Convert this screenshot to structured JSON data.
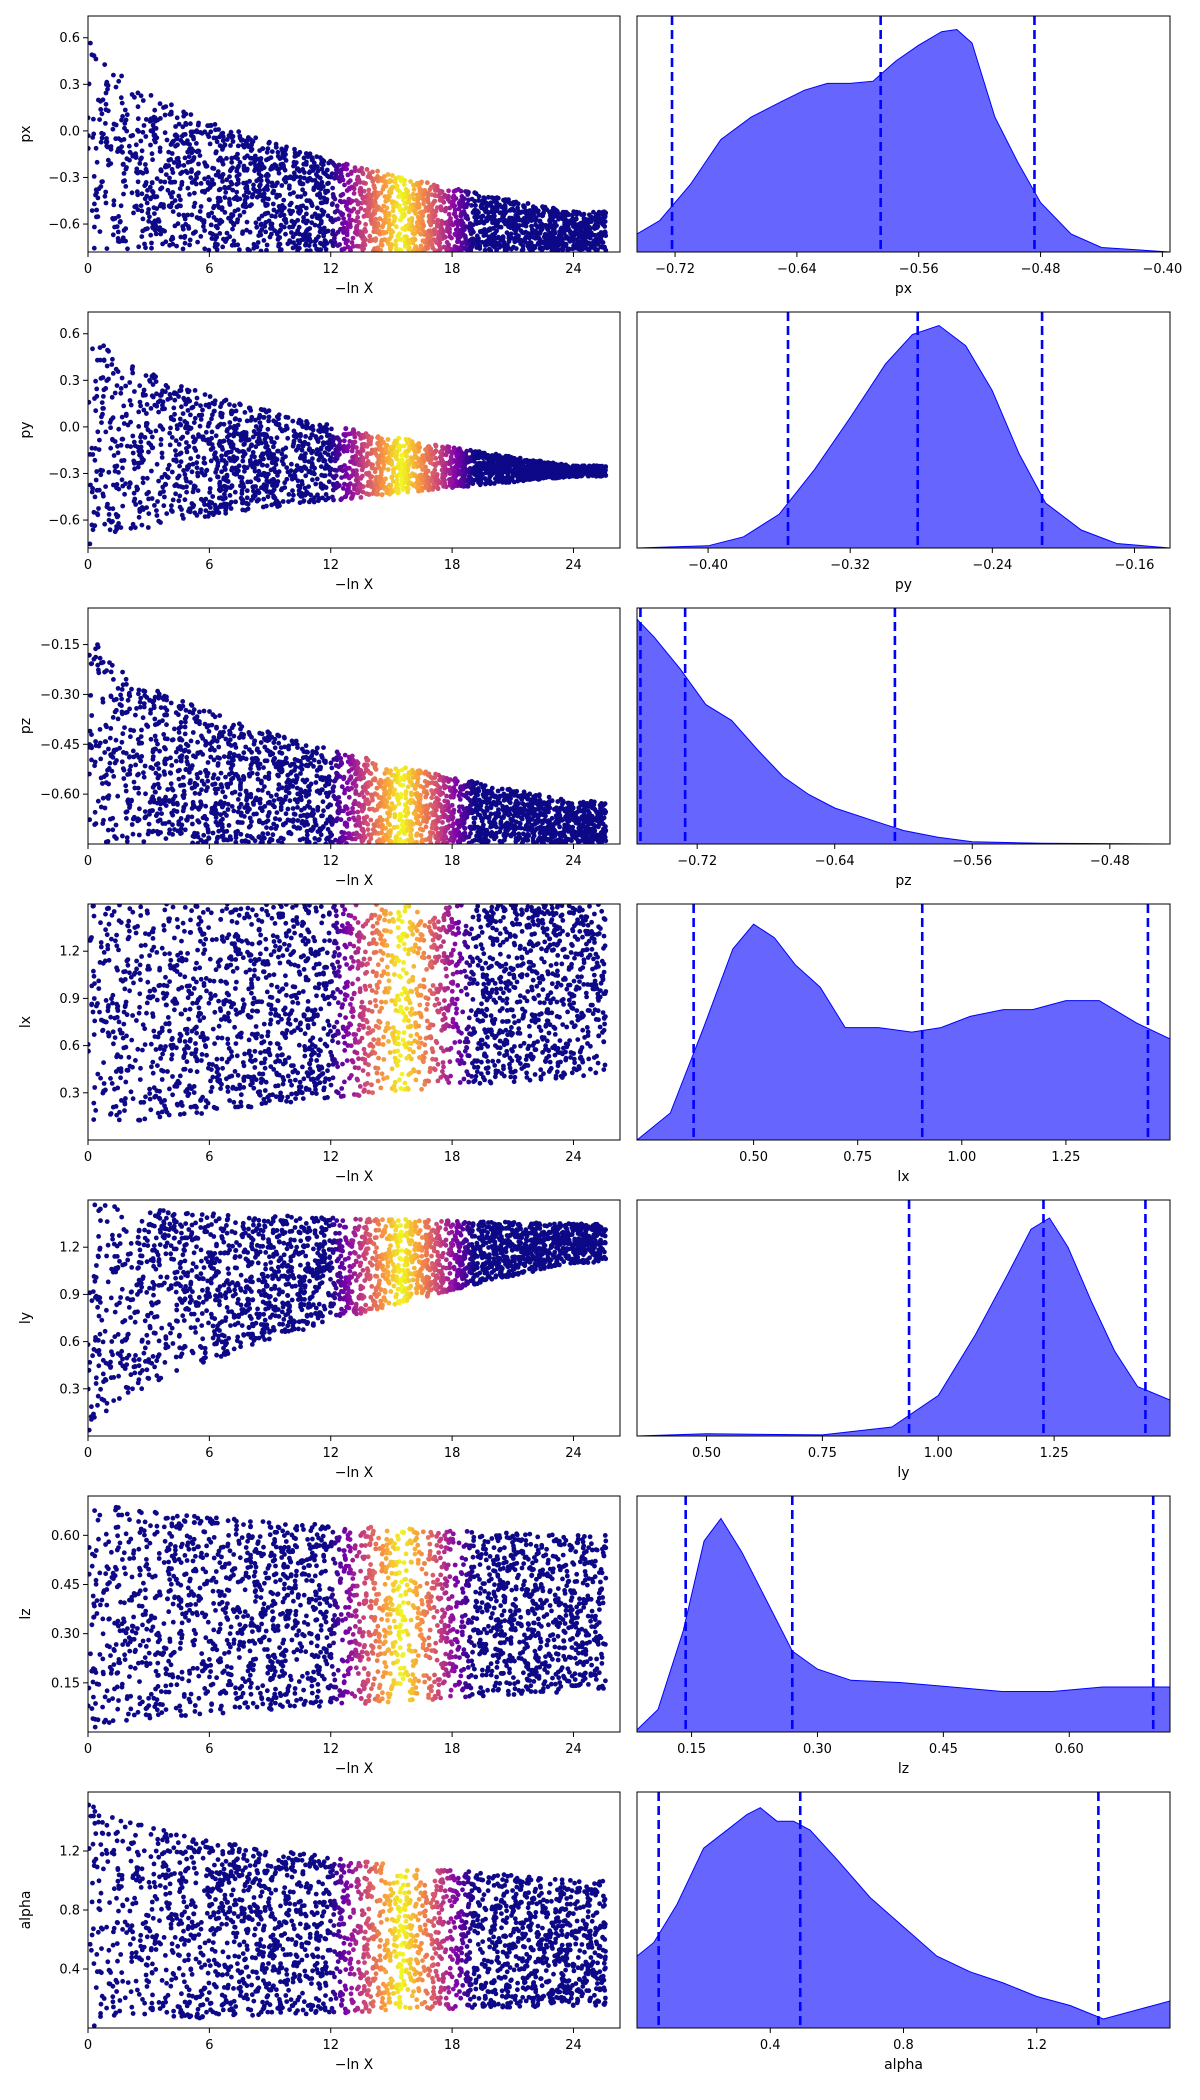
{
  "chart_data": [
    {
      "type": "scatter",
      "ylabel": "px",
      "xlabel": "−ln X",
      "xlim": [
        0,
        26.3
      ],
      "ylim": [
        -0.78,
        0.74
      ],
      "xticks": [
        0,
        6,
        12,
        18,
        24
      ],
      "xtick_labels": [
        "0",
        "6",
        "12",
        "18",
        "24"
      ],
      "yticks": [
        0.6,
        0.3,
        0.0,
        -0.3,
        -0.6
      ],
      "ytick_labels": [
        "0.6",
        "0.3",
        "0.0",
        "−0.3",
        "−0.6"
      ],
      "envelope": {
        "center": -0.62,
        "tail_top": -0.52,
        "tail_bottom": -0.77,
        "top_at_origin": 0.74
      },
      "colormap": "plasma",
      "highlight_center": 15.5
    },
    {
      "type": "area",
      "xlabel": "px",
      "xlim": [
        -0.745,
        -0.395
      ],
      "ylim": [
        0,
        1.05
      ],
      "xticks": [
        -0.72,
        -0.64,
        -0.56,
        -0.48,
        -0.4
      ],
      "xtick_labels": [
        "−0.72",
        "−0.64",
        "−0.56",
        "−0.48",
        "−0.40"
      ],
      "quantile_lines": [
        -0.722,
        -0.585,
        -0.484
      ],
      "density": [
        [
          -0.745,
          0.08
        ],
        [
          -0.73,
          0.14
        ],
        [
          -0.71,
          0.3
        ],
        [
          -0.69,
          0.5
        ],
        [
          -0.67,
          0.6
        ],
        [
          -0.65,
          0.67
        ],
        [
          -0.635,
          0.72
        ],
        [
          -0.62,
          0.75
        ],
        [
          -0.605,
          0.75
        ],
        [
          -0.59,
          0.76
        ],
        [
          -0.575,
          0.85
        ],
        [
          -0.56,
          0.92
        ],
        [
          -0.545,
          0.98
        ],
        [
          -0.535,
          0.99
        ],
        [
          -0.525,
          0.93
        ],
        [
          -0.51,
          0.6
        ],
        [
          -0.495,
          0.4
        ],
        [
          -0.48,
          0.22
        ],
        [
          -0.46,
          0.08
        ],
        [
          -0.44,
          0.02
        ],
        [
          -0.395,
          0.0
        ]
      ],
      "fill": "#6666ff",
      "line_color": "#0000ff"
    },
    {
      "type": "scatter",
      "ylabel": "py",
      "xlabel": "−ln X",
      "xlim": [
        0,
        26.3
      ],
      "ylim": [
        -0.78,
        0.74
      ],
      "xticks": [
        0,
        6,
        12,
        18,
        24
      ],
      "xtick_labels": [
        "0",
        "6",
        "12",
        "18",
        "24"
      ],
      "yticks": [
        0.6,
        0.3,
        0.0,
        -0.3,
        -0.6
      ],
      "ytick_labels": [
        "0.6",
        "0.3",
        "0.0",
        "−0.3",
        "−0.6"
      ],
      "envelope": {
        "center": -0.28,
        "tail_top": -0.25,
        "tail_bottom": -0.32,
        "top_at_origin": 0.74
      },
      "colormap": "plasma",
      "highlight_center": 15.5
    },
    {
      "type": "area",
      "xlabel": "py",
      "xlim": [
        -0.44,
        -0.14
      ],
      "ylim": [
        0,
        1.05
      ],
      "xticks": [
        -0.4,
        -0.32,
        -0.24,
        -0.16
      ],
      "xtick_labels": [
        "−0.40",
        "−0.32",
        "−0.24",
        "−0.16"
      ],
      "quantile_lines": [
        -0.355,
        -0.282,
        -0.212
      ],
      "density": [
        [
          -0.44,
          0.0
        ],
        [
          -0.4,
          0.01
        ],
        [
          -0.38,
          0.05
        ],
        [
          -0.36,
          0.15
        ],
        [
          -0.34,
          0.35
        ],
        [
          -0.32,
          0.58
        ],
        [
          -0.3,
          0.82
        ],
        [
          -0.285,
          0.95
        ],
        [
          -0.27,
          0.99
        ],
        [
          -0.255,
          0.9
        ],
        [
          -0.24,
          0.7
        ],
        [
          -0.225,
          0.42
        ],
        [
          -0.21,
          0.2
        ],
        [
          -0.19,
          0.08
        ],
        [
          -0.17,
          0.02
        ],
        [
          -0.14,
          0.0
        ]
      ],
      "fill": "#6666ff",
      "line_color": "#0000ff"
    },
    {
      "type": "scatter",
      "ylabel": "pz",
      "xlabel": "−ln X",
      "xlim": [
        0,
        26.3
      ],
      "ylim": [
        -0.75,
        -0.04
      ],
      "xticks": [
        0,
        6,
        12,
        18,
        24
      ],
      "xtick_labels": [
        "0",
        "6",
        "12",
        "18",
        "24"
      ],
      "yticks": [
        -0.15,
        -0.3,
        -0.45,
        -0.6
      ],
      "ytick_labels": [
        "−0.15",
        "−0.30",
        "−0.45",
        "−0.60"
      ],
      "envelope": {
        "center": -0.7,
        "tail_top": -0.62,
        "tail_bottom": -0.75,
        "top_at_origin": -0.04
      },
      "colormap": "plasma",
      "highlight_center": 15.5
    },
    {
      "type": "area",
      "xlabel": "pz",
      "xlim": [
        -0.755,
        -0.445
      ],
      "ylim": [
        0,
        1.05
      ],
      "xticks": [
        -0.72,
        -0.64,
        -0.56,
        -0.48
      ],
      "xtick_labels": [
        "−0.72",
        "−0.64",
        "−0.56",
        "−0.48"
      ],
      "quantile_lines": [
        -0.753,
        -0.727,
        -0.605
      ],
      "density": [
        [
          -0.755,
          1.0
        ],
        [
          -0.745,
          0.92
        ],
        [
          -0.73,
          0.78
        ],
        [
          -0.715,
          0.62
        ],
        [
          -0.7,
          0.55
        ],
        [
          -0.685,
          0.42
        ],
        [
          -0.67,
          0.3
        ],
        [
          -0.655,
          0.22
        ],
        [
          -0.64,
          0.16
        ],
        [
          -0.62,
          0.11
        ],
        [
          -0.6,
          0.06
        ],
        [
          -0.58,
          0.03
        ],
        [
          -0.56,
          0.01
        ],
        [
          -0.52,
          0.003
        ],
        [
          -0.445,
          0.0
        ]
      ],
      "fill": "#6666ff",
      "line_color": "#0000ff"
    },
    {
      "type": "scatter",
      "ylabel": "lx",
      "xlabel": "−ln X",
      "xlim": [
        0,
        26.3
      ],
      "ylim": [
        0.0,
        1.5
      ],
      "xticks": [
        0,
        6,
        12,
        18,
        24
      ],
      "xtick_labels": [
        "0",
        "6",
        "12",
        "18",
        "24"
      ],
      "yticks": [
        1.2,
        0.9,
        0.6,
        0.3
      ],
      "ytick_labels": [
        "1.2",
        "0.9",
        "0.6",
        "0.3"
      ],
      "envelope": {
        "center": 0.9,
        "tail_top": 1.5,
        "tail_bottom": 0.4,
        "top_at_origin": 1.5
      },
      "colormap": "plasma",
      "highlight_center": 15.5
    },
    {
      "type": "area",
      "xlabel": "lx",
      "xlim": [
        0.22,
        1.5
      ],
      "ylim": [
        0,
        1.05
      ],
      "xticks": [
        0.5,
        0.75,
        1.0,
        1.25
      ],
      "xtick_labels": [
        "0.50",
        "0.75",
        "1.00",
        "1.25"
      ],
      "quantile_lines": [
        0.356,
        0.905,
        1.447
      ],
      "density": [
        [
          0.22,
          0.0
        ],
        [
          0.3,
          0.12
        ],
        [
          0.38,
          0.5
        ],
        [
          0.45,
          0.85
        ],
        [
          0.5,
          0.96
        ],
        [
          0.55,
          0.9
        ],
        [
          0.6,
          0.78
        ],
        [
          0.66,
          0.68
        ],
        [
          0.72,
          0.5
        ],
        [
          0.8,
          0.5
        ],
        [
          0.88,
          0.48
        ],
        [
          0.95,
          0.5
        ],
        [
          1.02,
          0.55
        ],
        [
          1.1,
          0.58
        ],
        [
          1.17,
          0.58
        ],
        [
          1.25,
          0.62
        ],
        [
          1.33,
          0.62
        ],
        [
          1.42,
          0.52
        ],
        [
          1.5,
          0.45
        ]
      ],
      "fill": "#6666ff",
      "line_color": "#0000ff"
    },
    {
      "type": "scatter",
      "ylabel": "ly",
      "xlabel": "−ln X",
      "xlim": [
        0,
        26.3
      ],
      "ylim": [
        0.0,
        1.5
      ],
      "xticks": [
        0,
        6,
        12,
        18,
        24
      ],
      "xtick_labels": [
        "0",
        "6",
        "12",
        "18",
        "24"
      ],
      "yticks": [
        1.2,
        0.9,
        0.6,
        0.3
      ],
      "ytick_labels": [
        "1.2",
        "0.9",
        "0.6",
        "0.3"
      ],
      "envelope": {
        "center": 1.25,
        "tail_top": 1.35,
        "tail_bottom": 1.1,
        "top_at_origin": 1.5
      },
      "colormap": "plasma",
      "highlight_center": 15.5
    },
    {
      "type": "area",
      "xlabel": "ly",
      "xlim": [
        0.35,
        1.5
      ],
      "ylim": [
        0,
        1.05
      ],
      "xticks": [
        0.5,
        0.75,
        1.0,
        1.25
      ],
      "xtick_labels": [
        "0.50",
        "0.75",
        "1.00",
        "1.25"
      ],
      "quantile_lines": [
        0.937,
        1.227,
        1.447
      ],
      "density": [
        [
          0.35,
          0.0
        ],
        [
          0.5,
          0.01
        ],
        [
          0.75,
          0.005
        ],
        [
          0.9,
          0.04
        ],
        [
          1.0,
          0.18
        ],
        [
          1.08,
          0.45
        ],
        [
          1.15,
          0.72
        ],
        [
          1.2,
          0.92
        ],
        [
          1.24,
          0.97
        ],
        [
          1.28,
          0.84
        ],
        [
          1.33,
          0.6
        ],
        [
          1.38,
          0.38
        ],
        [
          1.43,
          0.22
        ],
        [
          1.5,
          0.16
        ]
      ],
      "fill": "#6666ff",
      "line_color": "#0000ff"
    },
    {
      "type": "scatter",
      "ylabel": "lz",
      "xlabel": "−ln X",
      "xlim": [
        0,
        26.3
      ],
      "ylim": [
        0.0,
        0.72
      ],
      "xticks": [
        0,
        6,
        12,
        18,
        24
      ],
      "xtick_labels": [
        "0",
        "6",
        "12",
        "18",
        "24"
      ],
      "yticks": [
        0.6,
        0.45,
        0.3,
        0.15
      ],
      "ytick_labels": [
        "0.60",
        "0.45",
        "0.30",
        "0.15"
      ],
      "envelope": {
        "center": 0.4,
        "tail_top": 0.6,
        "tail_bottom": 0.12,
        "top_at_origin": 0.72
      },
      "colormap": "plasma",
      "highlight_center": 15.5
    },
    {
      "type": "area",
      "xlabel": "lz",
      "xlim": [
        0.085,
        0.72
      ],
      "ylim": [
        0,
        1.05
      ],
      "xticks": [
        0.15,
        0.3,
        0.45,
        0.6
      ],
      "xtick_labels": [
        "0.15",
        "0.30",
        "0.45",
        "0.60"
      ],
      "quantile_lines": [
        0.143,
        0.27,
        0.7
      ],
      "density": [
        [
          0.085,
          0.01
        ],
        [
          0.11,
          0.1
        ],
        [
          0.14,
          0.45
        ],
        [
          0.165,
          0.85
        ],
        [
          0.185,
          0.95
        ],
        [
          0.21,
          0.8
        ],
        [
          0.24,
          0.58
        ],
        [
          0.27,
          0.36
        ],
        [
          0.3,
          0.28
        ],
        [
          0.34,
          0.23
        ],
        [
          0.4,
          0.22
        ],
        [
          0.46,
          0.2
        ],
        [
          0.52,
          0.18
        ],
        [
          0.58,
          0.18
        ],
        [
          0.64,
          0.2
        ],
        [
          0.72,
          0.2
        ]
      ],
      "fill": "#6666ff",
      "line_color": "#0000ff"
    },
    {
      "type": "scatter",
      "ylabel": "alpha",
      "xlabel": "−ln X",
      "xlim": [
        0,
        26.3
      ],
      "ylim": [
        0.0,
        1.6
      ],
      "xticks": [
        0,
        6,
        12,
        18,
        24
      ],
      "xtick_labels": [
        "0",
        "6",
        "12",
        "18",
        "24"
      ],
      "yticks": [
        1.2,
        0.8,
        0.4
      ],
      "ytick_labels": [
        "1.2",
        "0.8",
        "0.4"
      ],
      "envelope": {
        "center": 0.7,
        "tail_top": 1.0,
        "tail_bottom": 0.15,
        "top_at_origin": 1.6
      },
      "colormap": "plasma",
      "highlight_center": 15.5
    },
    {
      "type": "area",
      "xlabel": "alpha",
      "xlim": [
        0.0,
        1.6
      ],
      "ylim": [
        0,
        1.05
      ],
      "xticks": [
        0.4,
        0.8,
        1.2
      ],
      "xtick_labels": [
        "0.4",
        "0.8",
        "1.2"
      ],
      "quantile_lines": [
        0.065,
        0.49,
        1.385
      ],
      "density": [
        [
          0.0,
          0.32
        ],
        [
          0.05,
          0.38
        ],
        [
          0.12,
          0.55
        ],
        [
          0.2,
          0.8
        ],
        [
          0.27,
          0.88
        ],
        [
          0.33,
          0.95
        ],
        [
          0.37,
          0.98
        ],
        [
          0.42,
          0.92
        ],
        [
          0.47,
          0.92
        ],
        [
          0.52,
          0.88
        ],
        [
          0.6,
          0.75
        ],
        [
          0.7,
          0.58
        ],
        [
          0.8,
          0.45
        ],
        [
          0.9,
          0.32
        ],
        [
          1.0,
          0.25
        ],
        [
          1.1,
          0.2
        ],
        [
          1.2,
          0.14
        ],
        [
          1.3,
          0.1
        ],
        [
          1.4,
          0.04
        ],
        [
          1.5,
          0.08
        ],
        [
          1.6,
          0.12
        ]
      ],
      "fill": "#6666ff",
      "line_color": "#0000ff"
    }
  ]
}
